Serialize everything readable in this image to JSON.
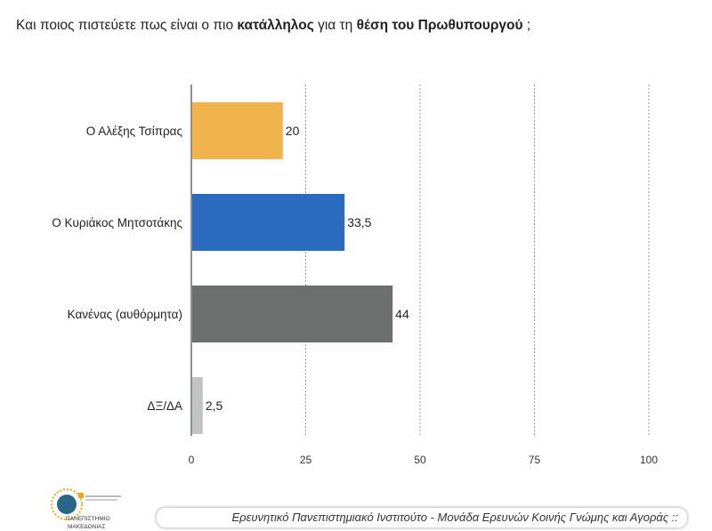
{
  "title": {
    "part1": "Και ποιος πιστεύετε πως είναι ο πιο ",
    "bold1": "κατάλληλος",
    "part2": " για τη ",
    "bold2": "θέση του Πρωθυπουργού",
    "part3": " ;"
  },
  "chart_data": {
    "type": "bar",
    "orientation": "horizontal",
    "categories": [
      "Ο Αλέξης Τσίπρας",
      "Ο Κυριάκος Μητσοτάκης",
      "Κανένας (αυθόρμητα)",
      "ΔΞ/ΔΑ"
    ],
    "values": [
      20,
      33.5,
      44,
      2.5
    ],
    "value_labels": [
      "20",
      "33,5",
      "44",
      "2,5"
    ],
    "colors": [
      "#F1B44C",
      "#2A6BBE",
      "#6B706F",
      "#C2C4C3"
    ],
    "xlim": [
      0,
      100
    ],
    "xticks": [
      0,
      25,
      50,
      75,
      100
    ],
    "grid": "vertical dashed",
    "legend": "none"
  },
  "logo": {
    "line1": "ΠΑΝΕΠΙΣΤΗΜΙΟ",
    "line2": "ΜΑΚΕΔΟΝΙΑΣ",
    "colors": [
      "#E8A91C",
      "#2C5F9E",
      "#1E7A4A"
    ]
  },
  "footer": {
    "text": "Ερευνητικό Πανεπιστημιακό Ινστιτούτο - Μονάδα Ερευνών Κοινής Γνώμης και Αγοράς ::"
  }
}
